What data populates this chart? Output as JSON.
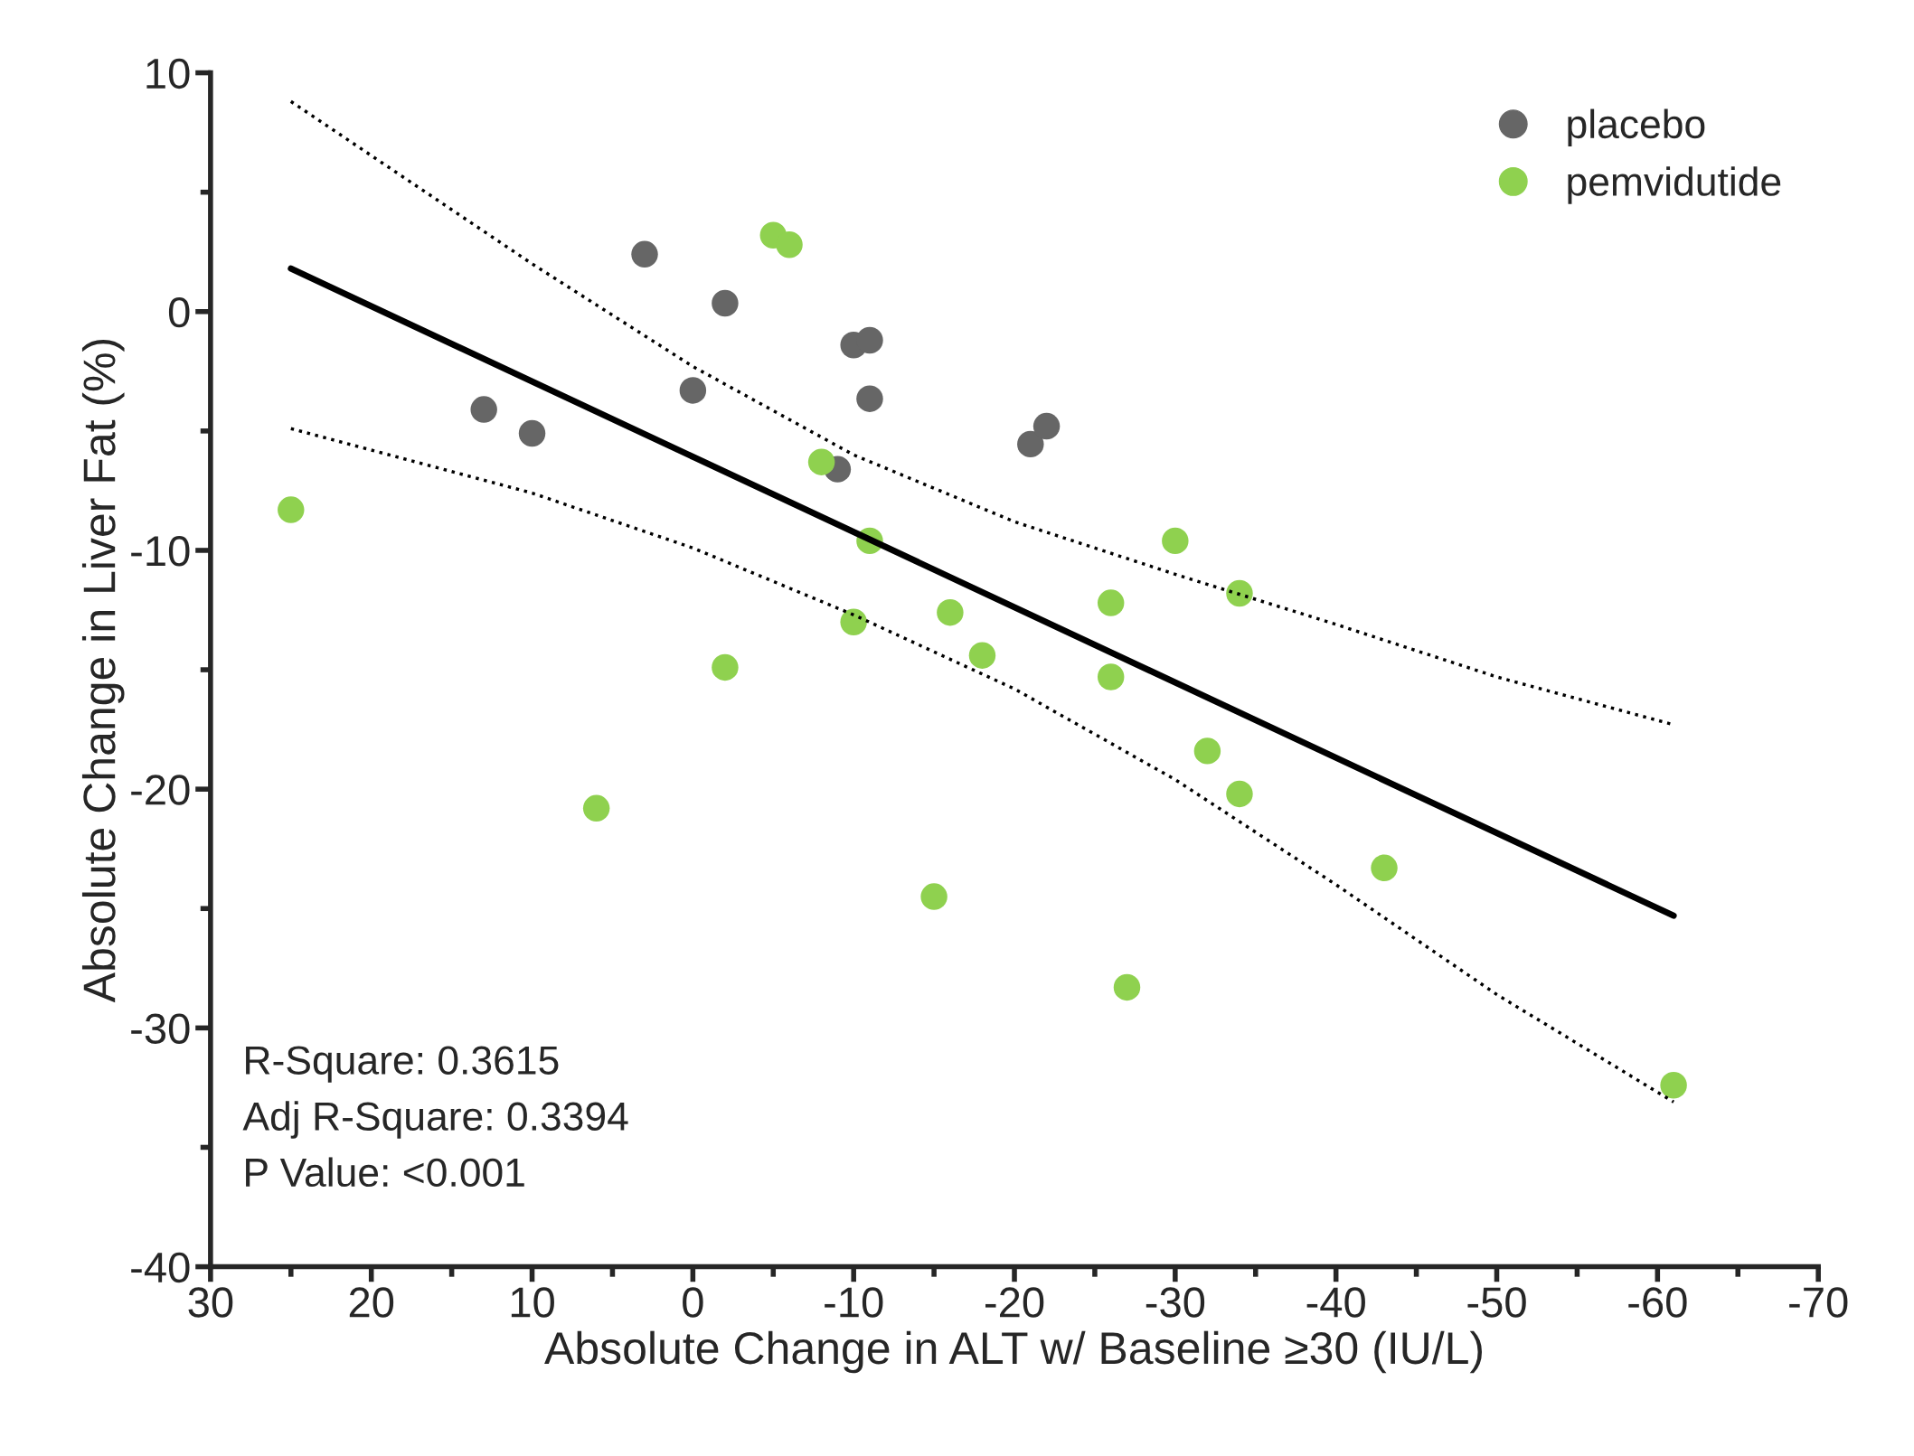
{
  "chart_data": {
    "type": "scatter",
    "xlabel": "Absolute Change in ALT w/ Baseline ≥30 (IU/L)",
    "ylabel": "Absolute Change in Liver Fat (%)",
    "xlim": [
      30,
      -70
    ],
    "ylim": [
      -40,
      10
    ],
    "xticks": [
      30,
      20,
      10,
      0,
      -10,
      -20,
      -30,
      -40,
      -50,
      -60,
      -70
    ],
    "yticks": [
      10,
      0,
      -10,
      -20,
      -30,
      -40
    ],
    "grid": false,
    "legend": "top right",
    "marker": "circle",
    "series": [
      {
        "name": "placebo",
        "color": "#666666",
        "x": [
          3,
          -2,
          13,
          10,
          0,
          -10,
          -11,
          -11,
          -9,
          -21,
          -22
        ],
        "values": [
          2.4,
          0.35,
          -4.1,
          -5.1,
          -3.3,
          -1.4,
          -1.2,
          -3.65,
          -6.6,
          -5.55,
          -4.8
        ]
      },
      {
        "name": "pemvidutide",
        "color": "#8fd14f",
        "x": [
          -5,
          -6,
          25,
          -8,
          -11,
          -10,
          -2,
          -16,
          -18,
          -26,
          -26,
          -30,
          -34,
          -32,
          -34,
          6,
          -15,
          -27,
          -43,
          -61
        ],
        "values": [
          3.2,
          2.8,
          -8.3,
          -6.3,
          -9.6,
          -13.0,
          -14.9,
          -12.6,
          -14.4,
          -12.2,
          -15.3,
          -9.6,
          -11.8,
          -18.4,
          -20.2,
          -20.8,
          -24.5,
          -28.3,
          -23.3,
          -32.4
        ]
      },
      {
        "type": "line",
        "marker": "none",
        "color": "#000000",
        "line_style": "solid",
        "x": [
          25,
          -61
        ],
        "values": [
          1.8,
          -25.3
        ]
      },
      {
        "type": "line",
        "marker": "none",
        "color": "#000000",
        "line_style": "dotted",
        "x": [
          25,
          10,
          0,
          -10,
          -20,
          -30,
          -40,
          -50,
          -61
        ],
        "values": [
          8.8,
          2.0,
          -2.3,
          -6.0,
          -8.8,
          -11.0,
          -13.1,
          -15.3,
          -17.3
        ]
      },
      {
        "type": "line",
        "marker": "none",
        "color": "#000000",
        "line_style": "dotted",
        "x": [
          25,
          10,
          0,
          -10,
          -20,
          -30,
          -40,
          -50,
          -61
        ],
        "values": [
          -4.9,
          -7.6,
          -9.9,
          -12.7,
          -15.8,
          -19.6,
          -24.0,
          -28.6,
          -33.1
        ]
      }
    ],
    "annotations": [
      "R-Square: 0.3615",
      "Adj R-Square: 0.3394",
      "P Value: <0.001"
    ]
  }
}
